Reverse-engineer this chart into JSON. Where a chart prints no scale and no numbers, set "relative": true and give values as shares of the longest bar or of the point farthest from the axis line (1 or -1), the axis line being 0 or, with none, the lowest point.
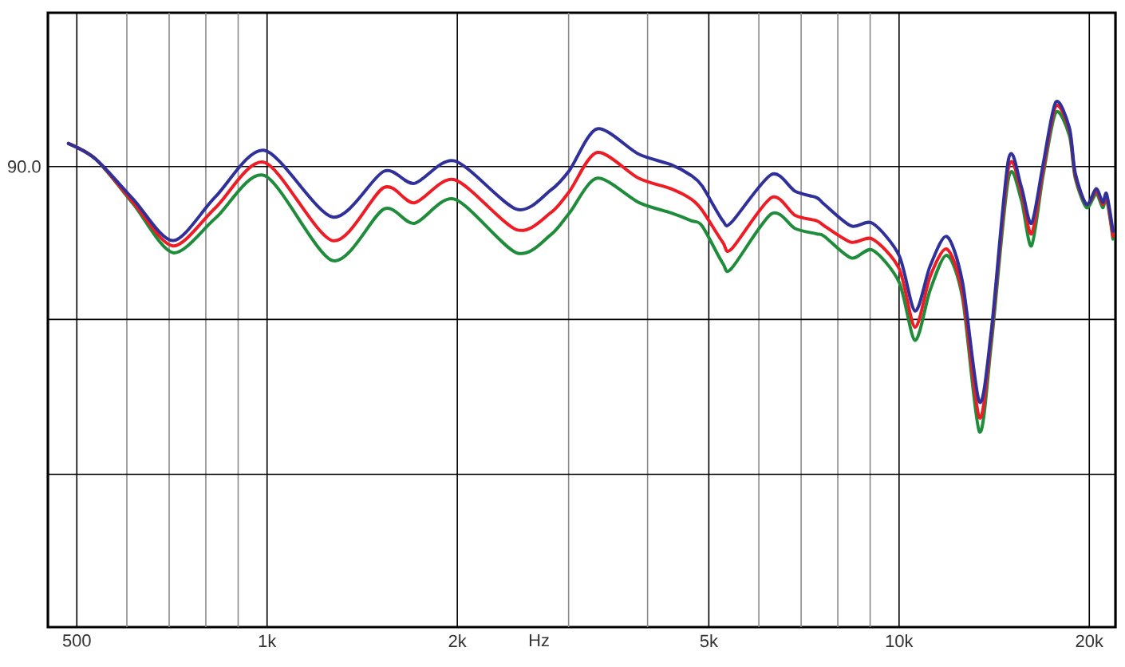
{
  "chart_data": {
    "type": "line",
    "xlabel": "Hz",
    "log": "x",
    "grid": "x",
    "relative": true,
    "annotations": [
      "90.0"
    ],
    "xlim": [
      450,
      22000
    ],
    "xticks": [
      500,
      {
        "value": 600,
        "label": null
      },
      {
        "value": 700,
        "label": null
      },
      {
        "value": 800,
        "label": null
      },
      {
        "value": 900,
        "label": null
      },
      {
        "value": 1000,
        "label": "1k"
      },
      {
        "value": 2000,
        "label": "2k"
      },
      {
        "value": 3000,
        "label": null
      },
      {
        "value": 4000,
        "label": null
      },
      {
        "value": 5000,
        "label": "5k"
      },
      {
        "value": 6000,
        "label": null
      },
      {
        "value": 7000,
        "label": null
      },
      {
        "value": 8000,
        "label": null
      },
      {
        "value": 9000,
        "label": null
      },
      {
        "value": 10000,
        "label": "10k"
      },
      {
        "value": 20000,
        "label": "20k"
      }
    ],
    "ref_lines": [
      {
        "axis": "y",
        "value": 0.877
      },
      {
        "axis": "y",
        "value": 0.586
      },
      {
        "axis": "y",
        "value": 0.291
      }
    ],
    "x": [
      485,
      536,
      614,
      710,
      829,
      991,
      1270,
      1530,
      1710,
      1980,
      2480,
      2810,
      3010,
      3330,
      3870,
      4350,
      4690,
      4880,
      5260,
      5430,
      6280,
      6850,
      7400,
      7620,
      8400,
      9080,
      10000,
      10600,
      11200,
      11900,
      12600,
      13400,
      14000,
      14900,
      15600,
      16200,
      16900,
      17700,
      18600,
      19000,
      19800,
      20500,
      21000,
      21300,
      21800
    ],
    "series": [
      {
        "color": "#30309a",
        "values": [
          0.921,
          0.891,
          0.815,
          0.736,
          0.82,
          0.908,
          0.781,
          0.868,
          0.845,
          0.888,
          0.796,
          0.832,
          0.87,
          0.949,
          0.901,
          0.881,
          0.86,
          0.84,
          0.774,
          0.771,
          0.862,
          0.83,
          0.818,
          0.805,
          0.764,
          0.769,
          0.708,
          0.602,
          0.688,
          0.744,
          0.657,
          0.429,
          0.566,
          0.891,
          0.84,
          0.769,
          0.881,
          1.0,
          0.951,
          0.865,
          0.805,
          0.835,
          0.809,
          0.825,
          0.754
        ]
      },
      {
        "color": "#ee1c24",
        "values": [
          0.921,
          0.891,
          0.809,
          0.726,
          0.799,
          0.885,
          0.736,
          0.837,
          0.808,
          0.852,
          0.757,
          0.789,
          0.83,
          0.904,
          0.855,
          0.835,
          0.815,
          0.794,
          0.733,
          0.72,
          0.818,
          0.784,
          0.774,
          0.764,
          0.733,
          0.739,
          0.683,
          0.571,
          0.668,
          0.72,
          0.637,
          0.399,
          0.556,
          0.875,
          0.83,
          0.749,
          0.87,
          0.992,
          0.946,
          0.86,
          0.805,
          0.83,
          0.805,
          0.82,
          0.744
        ]
      },
      {
        "color": "#1e8c3a",
        "values": [
          0.921,
          0.891,
          0.806,
          0.713,
          0.779,
          0.86,
          0.698,
          0.796,
          0.769,
          0.815,
          0.713,
          0.747,
          0.789,
          0.855,
          0.809,
          0.789,
          0.774,
          0.764,
          0.693,
          0.683,
          0.787,
          0.759,
          0.749,
          0.744,
          0.703,
          0.718,
          0.657,
          0.546,
          0.642,
          0.708,
          0.627,
          0.372,
          0.541,
          0.855,
          0.815,
          0.726,
          0.86,
          0.98,
          0.936,
          0.855,
          0.799,
          0.825,
          0.799,
          0.815,
          0.739
        ]
      }
    ]
  }
}
